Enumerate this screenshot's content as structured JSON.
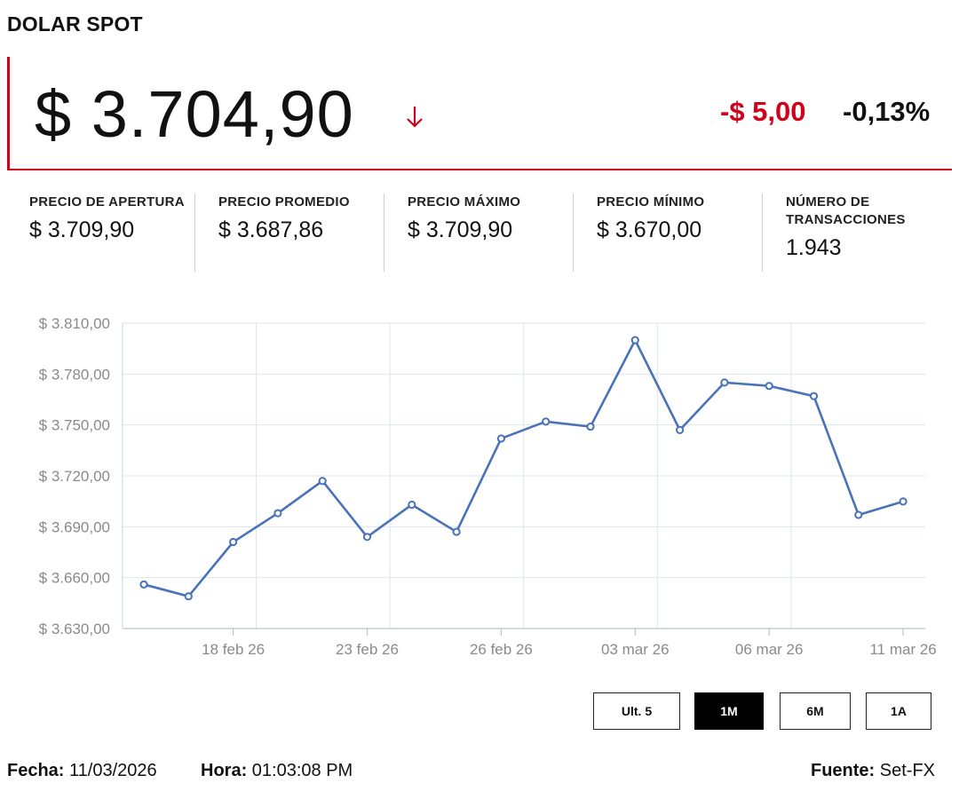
{
  "header": {
    "title": "DOLAR SPOT"
  },
  "quote": {
    "price": "$ 3.704,90",
    "direction_icon": "arrow-down-icon",
    "change_abs": "-$ 5,00",
    "change_pct": "-0,13%",
    "accent_color": "#d0021b"
  },
  "stats": [
    {
      "label": "PRECIO DE APERTURA",
      "value": "$ 3.709,90"
    },
    {
      "label": "PRECIO PROMEDIO",
      "value": "$ 3.687,86"
    },
    {
      "label": "PRECIO MÁXIMO",
      "value": "$ 3.709,90"
    },
    {
      "label": "PRECIO MÍNIMO",
      "value": "$ 3.670,00"
    },
    {
      "label": "NÚMERO DE TRANSACCIONES",
      "value": "1.943"
    }
  ],
  "chart_data": {
    "type": "line",
    "series_color": "#4a72b8",
    "grid": true,
    "ylim": [
      3630,
      3810
    ],
    "y_ticks": [
      3630,
      3660,
      3690,
      3720,
      3750,
      3780,
      3810
    ],
    "y_tick_labels": [
      "$ 3.630,00",
      "$ 3.660,00",
      "$ 3.690,00",
      "$ 3.720,00",
      "$ 3.750,00",
      "$ 3.780,00",
      "$ 3.810,00"
    ],
    "x_tick_labels": [
      "18 feb 26",
      "23 feb 26",
      "26 feb 26",
      "03 mar 26",
      "06 mar 26",
      "11 mar 26"
    ],
    "x_tick_index": [
      2,
      5,
      8,
      11,
      14,
      17
    ],
    "values": [
      3656,
      3649,
      3681,
      3698,
      3717,
      3684,
      3703,
      3687,
      3742,
      3752,
      3749,
      3800,
      3747,
      3775,
      3773,
      3767,
      3697,
      3704.9
    ]
  },
  "range_buttons": [
    {
      "label": "Ult. 5",
      "active": false
    },
    {
      "label": "1M",
      "active": true
    },
    {
      "label": "6M",
      "active": false
    },
    {
      "label": "1A",
      "active": false
    }
  ],
  "footer": {
    "fecha_label": "Fecha:",
    "fecha_value": "11/03/2026",
    "hora_label": "Hora:",
    "hora_value": "01:03:08 PM",
    "fuente_label": "Fuente:",
    "fuente_value": "Set-FX"
  }
}
